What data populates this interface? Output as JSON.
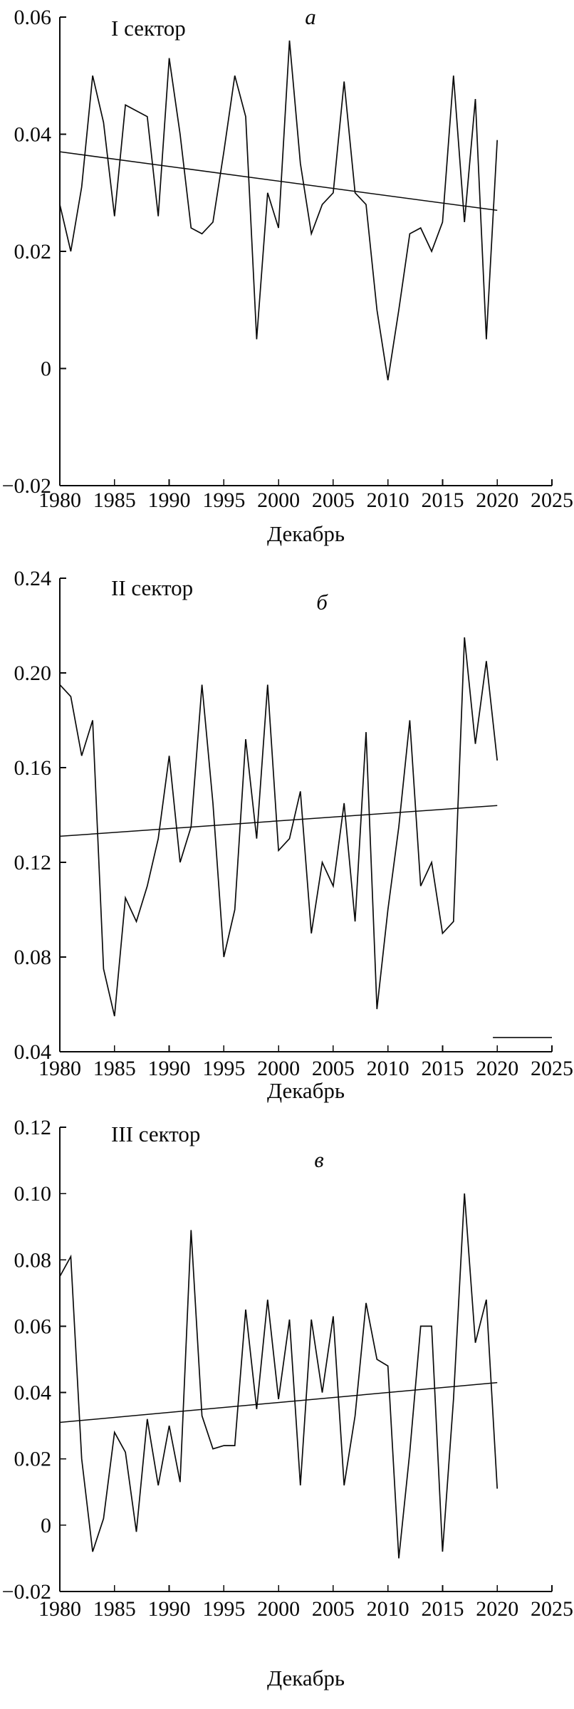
{
  "page": {
    "background": "#ffffff",
    "ink": "#0a0a0a"
  },
  "chart_data": [
    {
      "type": "line",
      "title": "I сектор",
      "panel_letter": "а",
      "xlabel": "Декабрь",
      "legend": "none",
      "grid": false,
      "xlim": [
        1980,
        2025
      ],
      "ylim": [
        -0.02,
        0.06
      ],
      "x_ticks": [
        1980,
        1985,
        1990,
        1995,
        2000,
        2005,
        2010,
        2015,
        2020,
        2025
      ],
      "y_ticks": [
        0.06,
        0.04,
        0.02,
        0,
        -0.02
      ],
      "y_tick_labels": [
        "0.06",
        "0.04",
        "0.02",
        "0",
        "−0.02"
      ],
      "x_years": {
        "start": 1980,
        "end": 2020,
        "step": 1
      },
      "values": [
        0.028,
        0.02,
        0.031,
        0.05,
        0.042,
        0.026,
        0.045,
        0.044,
        0.043,
        0.026,
        0.053,
        0.04,
        0.024,
        0.023,
        0.025,
        0.037,
        0.05,
        0.043,
        0.005,
        0.03,
        0.024,
        0.056,
        0.035,
        0.023,
        0.028,
        0.03,
        0.049,
        0.03,
        0.028,
        0.01,
        -0.002,
        0.01,
        0.023,
        0.024,
        0.02,
        0.025,
        0.05,
        0.025,
        0.046,
        0.005,
        0.039
      ],
      "trend_line": {
        "x": [
          1980,
          2020
        ],
        "y": [
          0.037,
          0.027
        ]
      }
    },
    {
      "type": "line",
      "title": "II сектор",
      "panel_letter": "б",
      "xlabel": "Декабрь",
      "legend": "none",
      "grid": false,
      "xlim": [
        1980,
        2025
      ],
      "ylim": [
        0.04,
        0.24
      ],
      "x_ticks": [
        1980,
        1985,
        1990,
        1995,
        2000,
        2005,
        2010,
        2015,
        2020,
        2025
      ],
      "y_ticks": [
        0.24,
        0.2,
        0.16,
        0.12,
        0.08,
        0.04
      ],
      "y_tick_labels": [
        "0.24",
        "0.20",
        "0.16",
        "0.12",
        "0.08",
        "0.04"
      ],
      "x_years": {
        "start": 1980,
        "end": 2020,
        "step": 1
      },
      "values": [
        0.195,
        0.19,
        0.165,
        0.18,
        0.075,
        0.055,
        0.105,
        0.095,
        0.11,
        0.13,
        0.165,
        0.12,
        0.135,
        0.195,
        0.145,
        0.08,
        0.1,
        0.172,
        0.13,
        0.195,
        0.125,
        0.13,
        0.15,
        0.09,
        0.12,
        0.11,
        0.145,
        0.095,
        0.175,
        0.058,
        0.1,
        0.135,
        0.18,
        0.11,
        0.12,
        0.09,
        0.095,
        0.215,
        0.17,
        0.205,
        0.163
      ],
      "trend_line": {
        "x": [
          1980,
          2020
        ],
        "y": [
          0.131,
          0.144
        ]
      },
      "artifact_segment": {
        "x": [
          2019.6,
          2025
        ],
        "y": 0.046
      }
    },
    {
      "type": "line",
      "title": "III сектор",
      "panel_letter": "в",
      "xlabel": "Декабрь",
      "legend": "none",
      "grid": false,
      "xlim": [
        1980,
        2025
      ],
      "ylim": [
        -0.02,
        0.12
      ],
      "x_ticks": [
        1980,
        1985,
        1990,
        1995,
        2000,
        2005,
        2010,
        2015,
        2020,
        2025
      ],
      "y_ticks": [
        0.12,
        0.1,
        0.08,
        0.06,
        0.04,
        0.02,
        0,
        -0.02
      ],
      "y_tick_labels": [
        "0.12",
        "0.10",
        "0.08",
        "0.06",
        "0.04",
        "0.02",
        "0",
        "−0.02"
      ],
      "x_years": {
        "start": 1980,
        "end": 2020,
        "step": 1
      },
      "values": [
        0.075,
        0.081,
        0.02,
        -0.008,
        0.002,
        0.028,
        0.022,
        -0.002,
        0.032,
        0.012,
        0.03,
        0.013,
        0.089,
        0.033,
        0.023,
        0.024,
        0.024,
        0.065,
        0.035,
        0.068,
        0.038,
        0.062,
        0.012,
        0.062,
        0.04,
        0.063,
        0.012,
        0.033,
        0.067,
        0.05,
        0.048,
        -0.01,
        0.022,
        0.06,
        0.06,
        -0.008,
        0.038,
        0.1,
        0.055,
        0.068,
        0.011
      ],
      "trend_line": {
        "x": [
          1980,
          2020
        ],
        "y": [
          0.031,
          0.043
        ]
      }
    }
  ]
}
